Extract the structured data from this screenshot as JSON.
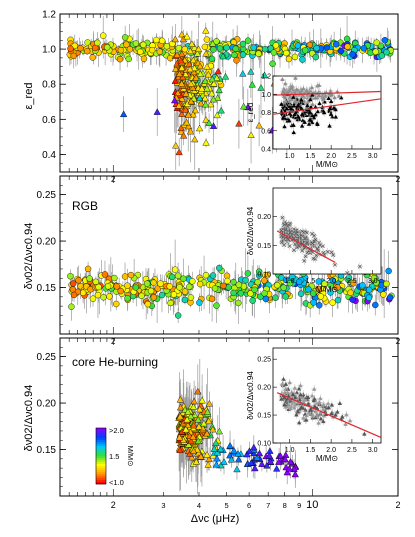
{
  "chart_data": [
    {
      "type": "scatter",
      "panel": "top",
      "ylabel": "ε_red",
      "xscale": "log",
      "xlim": [
        1.3,
        20
      ],
      "ylim": [
        0.3,
        1.2
      ],
      "yticks": [
        0.4,
        0.6,
        0.8,
        1.0,
        1.2
      ],
      "xticks_labeled": [
        "2",
        "3",
        "4",
        "5",
        "6",
        "7",
        "8",
        "9",
        "10",
        "2"
      ],
      "band": {
        "x": [
          1.3,
          20
        ],
        "y_center": 1.0,
        "y_spread": 0.04,
        "dip": {
          "x": [
            3.4,
            4.6
          ],
          "y_min": 0.55
        }
      },
      "series": [
        {
          "symbol": "circle",
          "population": "RGB",
          "x_range": [
            1.4,
            19
          ],
          "y_center": 0.99
        },
        {
          "symbol": "triangle",
          "population": "core He-burning",
          "x_range": [
            3.3,
            9.0
          ],
          "y_center": 0.78
        }
      ],
      "inset": {
        "xlabel": "M/M⊙",
        "ylabel": "ε_red",
        "xlim": [
          0.6,
          3.2
        ],
        "ylim": [
          0.4,
          1.2
        ],
        "xticks": [
          "1.0",
          "1.5",
          "2.0",
          "2.5",
          "3.0"
        ],
        "yticks": [
          "0.4",
          "0.6",
          "0.8",
          "1.0",
          "1.2"
        ],
        "fits": [
          {
            "x": [
              0.6,
              3.2
            ],
            "y": [
              0.99,
              1.03
            ]
          },
          {
            "x": [
              0.6,
              3.2
            ],
            "y": [
              0.78,
              0.95
            ]
          }
        ]
      }
    },
    {
      "type": "scatter",
      "panel": "middle",
      "label": "RGB",
      "ylabel": "δν02/Δνc0.94",
      "xscale": "log",
      "xlim": [
        1.3,
        20
      ],
      "ylim": [
        0.1,
        0.27
      ],
      "yticks": [
        0.15,
        0.2,
        0.25
      ],
      "series": [
        {
          "symbol": "circle",
          "population": "RGB",
          "x_range": [
            1.4,
            19
          ],
          "y_center": 0.15,
          "y_spread": 0.01
        }
      ],
      "inset": {
        "xlabel": "M/M⊙",
        "ylabel": "δν02/Δνc0.94",
        "xlim": [
          0.6,
          3.2
        ],
        "ylim": [
          0.1,
          0.25
        ],
        "xticks": [
          "1.0",
          "1.5",
          "2.0",
          "2.5",
          "3.0"
        ],
        "yticks": [
          "0.10",
          "0.15",
          "0.20"
        ],
        "fits": [
          {
            "x": [
              0.7,
              2.1
            ],
            "y": [
              0.175,
              0.12
            ]
          }
        ]
      }
    },
    {
      "type": "scatter",
      "panel": "bottom",
      "label": "core He-burning",
      "ylabel": "δν02/Δνc0.94",
      "xlabel": "Δνc (μHz)",
      "xscale": "log",
      "xlim": [
        1.3,
        20
      ],
      "ylim": [
        0.1,
        0.27
      ],
      "yticks": [
        0.15,
        0.2,
        0.25
      ],
      "xtick_labels": [
        "2",
        "3",
        "4",
        "5",
        "6",
        "7",
        "8",
        "9",
        "10",
        "2"
      ],
      "series": [
        {
          "symbol": "triangle",
          "population": "core He-burning",
          "x_range": [
            3.3,
            9.0
          ],
          "y_center": 0.17
        }
      ],
      "inset": {
        "xlabel": "M/M⊙",
        "ylabel": "δν02/Δνc0.94",
        "xlim": [
          0.6,
          3.2
        ],
        "ylim": [
          0.1,
          0.27
        ],
        "xticks": [
          "1.0",
          "1.5",
          "2.0",
          "2.5",
          "3.0"
        ],
        "yticks": [
          "0.10",
          "0.15",
          "0.20",
          "0.25"
        ],
        "fits": [
          {
            "x": [
              0.7,
              3.2
            ],
            "y": [
              0.19,
              0.11
            ]
          }
        ]
      },
      "colorbar": {
        "label": "M/M⊙",
        "ticks": [
          ">2.0",
          "1.5",
          "<1.0"
        ],
        "colors": [
          "#8b00ff",
          "#0040ff",
          "#00c8ff",
          "#30e040",
          "#ffff00",
          "#ff9900",
          "#ff0000"
        ]
      }
    }
  ]
}
